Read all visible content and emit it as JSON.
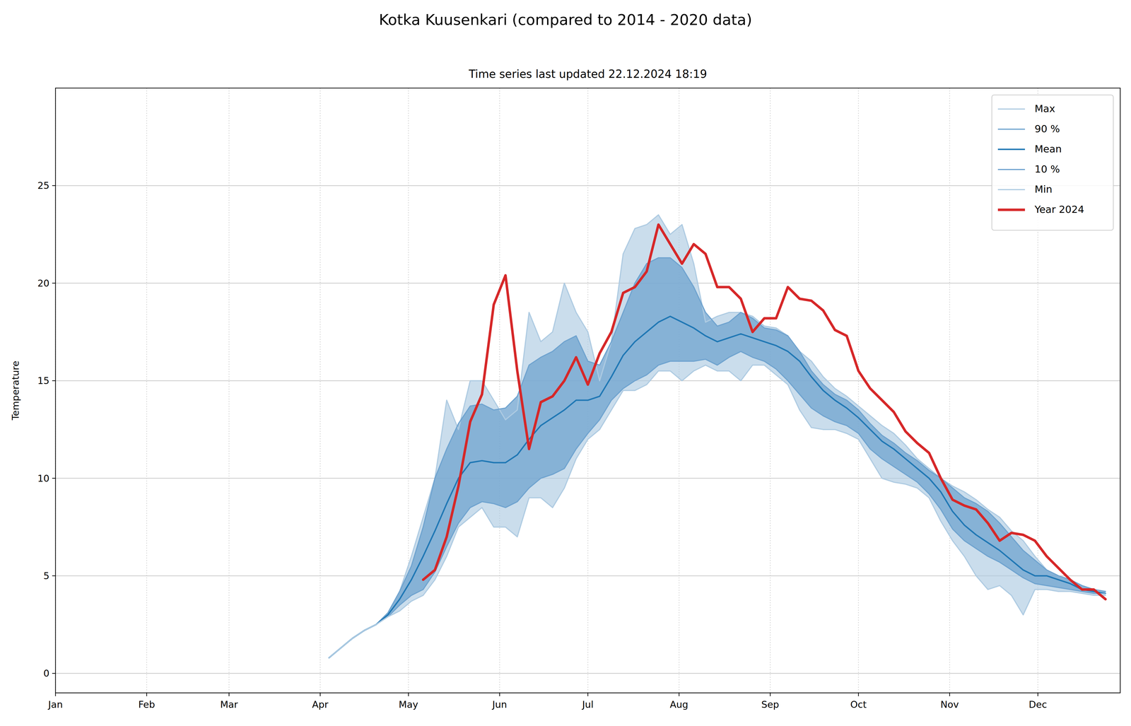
{
  "chart_data": {
    "type": "line",
    "title": "Kotka Kuusenkari (compared to 2014 - 2020 data)",
    "subtitle": "Time series last updated 22.12.2024 18:19",
    "ylabel": "Temperature",
    "x": [
      93,
      97,
      101,
      105,
      109,
      113,
      117,
      121,
      125,
      129,
      133,
      137,
      141,
      145,
      149,
      153,
      157,
      161,
      165,
      169,
      173,
      177,
      181,
      185,
      189,
      193,
      197,
      201,
      205,
      209,
      213,
      217,
      221,
      225,
      229,
      233,
      237,
      241,
      245,
      249,
      253,
      257,
      261,
      265,
      269,
      273,
      277,
      281,
      285,
      289,
      293,
      297,
      301,
      305,
      309,
      313,
      317,
      321,
      325,
      329,
      333,
      337,
      341,
      345,
      349,
      353,
      357
    ],
    "xlim": [
      0,
      362
    ],
    "xticks": [
      {
        "value": 0,
        "label": "Jan"
      },
      {
        "value": 31,
        "label": "Feb"
      },
      {
        "value": 59,
        "label": "Mar"
      },
      {
        "value": 90,
        "label": "Apr"
      },
      {
        "value": 120,
        "label": "May"
      },
      {
        "value": 151,
        "label": "Jun"
      },
      {
        "value": 181,
        "label": "Jul"
      },
      {
        "value": 212,
        "label": "Aug"
      },
      {
        "value": 243,
        "label": "Sep"
      },
      {
        "value": 273,
        "label": "Oct"
      },
      {
        "value": 304,
        "label": "Nov"
      },
      {
        "value": 334,
        "label": "Dec"
      }
    ],
    "ylim": [
      -1,
      30
    ],
    "yticks": [
      0,
      5,
      10,
      15,
      20,
      25
    ],
    "grid": true,
    "legend": "upper right",
    "series": [
      {
        "name": "Max",
        "color": "#aecbe2",
        "values": [
          0.8,
          1.3,
          1.8,
          2.2,
          2.5,
          3.1,
          4.2,
          6.0,
          8.0,
          10.0,
          14.0,
          12.5,
          15.0,
          15.0,
          14.0,
          13.0,
          13.5,
          18.5,
          17.0,
          17.5,
          20.0,
          18.5,
          17.5,
          15.0,
          17.0,
          21.5,
          22.8,
          23.0,
          23.5,
          22.5,
          23.0,
          21.0,
          18.0,
          18.3,
          18.5,
          18.5,
          18.3,
          17.8,
          17.7,
          17.3,
          16.5,
          16.0,
          15.2,
          14.6,
          14.2,
          13.7,
          13.2,
          12.7,
          12.3,
          11.7,
          11.0,
          10.5,
          10.0,
          9.6,
          9.3,
          8.9,
          8.4,
          8.0,
          7.3,
          6.8,
          6.0,
          5.3,
          5.0,
          4.8,
          4.5,
          4.3,
          4.1
        ]
      },
      {
        "name": "90 %",
        "color": "#6fa3cf",
        "values": [
          0.8,
          1.3,
          1.8,
          2.2,
          2.5,
          3.1,
          4.2,
          5.5,
          7.5,
          10.0,
          11.5,
          12.8,
          13.7,
          13.8,
          13.5,
          13.6,
          14.2,
          15.8,
          16.2,
          16.5,
          17.0,
          17.3,
          16.0,
          15.8,
          17.0,
          18.5,
          20.0,
          21.0,
          21.3,
          21.3,
          20.8,
          19.8,
          18.5,
          17.8,
          18.0,
          18.5,
          18.2,
          17.7,
          17.6,
          17.3,
          16.5,
          15.5,
          14.8,
          14.3,
          14.0,
          13.5,
          12.8,
          12.2,
          11.8,
          11.3,
          10.9,
          10.4,
          10.0,
          9.5,
          9.0,
          8.7,
          8.3,
          7.7,
          7.0,
          6.3,
          5.8,
          5.3,
          5.0,
          4.8,
          4.5,
          4.3,
          4.2
        ]
      },
      {
        "name": "Mean",
        "color": "#1f77b4",
        "values": [
          0.8,
          1.3,
          1.8,
          2.2,
          2.5,
          3.0,
          3.8,
          4.8,
          6.0,
          7.3,
          8.7,
          10.0,
          10.8,
          10.9,
          10.8,
          10.8,
          11.2,
          12.0,
          12.7,
          13.1,
          13.5,
          14.0,
          14.0,
          14.2,
          15.2,
          16.3,
          17.0,
          17.5,
          18.0,
          18.3,
          18.0,
          17.7,
          17.3,
          17.0,
          17.2,
          17.4,
          17.2,
          17.0,
          16.8,
          16.5,
          16.0,
          15.2,
          14.5,
          14.0,
          13.6,
          13.1,
          12.5,
          11.9,
          11.5,
          11.0,
          10.5,
          10.0,
          9.3,
          8.3,
          7.6,
          7.1,
          6.7,
          6.3,
          5.8,
          5.3,
          5.0,
          5.0,
          4.8,
          4.6,
          4.3,
          4.2,
          4.1
        ]
      },
      {
        "name": "10 %",
        "color": "#6fa3cf",
        "values": [
          0.8,
          1.3,
          1.8,
          2.2,
          2.5,
          2.9,
          3.5,
          4.0,
          4.3,
          5.2,
          6.5,
          7.7,
          8.5,
          8.8,
          8.7,
          8.5,
          8.8,
          9.5,
          10.0,
          10.2,
          10.5,
          11.5,
          12.3,
          13.0,
          14.0,
          14.6,
          15.0,
          15.3,
          15.8,
          16.0,
          16.0,
          16.0,
          16.1,
          15.8,
          16.2,
          16.5,
          16.2,
          16.0,
          15.6,
          15.0,
          14.3,
          13.6,
          13.2,
          12.9,
          12.7,
          12.3,
          11.5,
          11.0,
          10.6,
          10.2,
          9.8,
          9.2,
          8.4,
          7.4,
          6.8,
          6.4,
          6.0,
          5.7,
          5.3,
          4.9,
          4.6,
          4.5,
          4.4,
          4.3,
          4.2,
          4.1,
          4.1
        ]
      },
      {
        "name": "Min",
        "color": "#aecbe2",
        "values": [
          0.8,
          1.3,
          1.8,
          2.2,
          2.5,
          2.9,
          3.2,
          3.7,
          4.0,
          4.8,
          6.0,
          7.5,
          8.0,
          8.5,
          7.5,
          7.5,
          7.0,
          9.0,
          9.0,
          8.5,
          9.5,
          11.0,
          12.0,
          12.5,
          13.5,
          14.5,
          14.5,
          14.8,
          15.5,
          15.5,
          15.0,
          15.5,
          15.8,
          15.5,
          15.5,
          15.0,
          15.8,
          15.8,
          15.3,
          14.8,
          13.5,
          12.6,
          12.5,
          12.5,
          12.3,
          12.0,
          11.0,
          10.0,
          9.8,
          9.7,
          9.5,
          9.0,
          7.8,
          6.8,
          6.0,
          5.0,
          4.3,
          4.5,
          4.0,
          3.0,
          4.3,
          4.3,
          4.2,
          4.2,
          4.1,
          4.0,
          4.0
        ]
      },
      {
        "name": "Year 2024",
        "color": "#d62728",
        "values": [
          null,
          null,
          null,
          null,
          null,
          null,
          null,
          null,
          4.8,
          5.3,
          7.0,
          9.6,
          12.9,
          14.3,
          18.9,
          20.4,
          15.5,
          11.5,
          13.9,
          14.2,
          15.0,
          16.2,
          14.8,
          16.4,
          17.5,
          19.5,
          19.8,
          20.6,
          23.0,
          22.0,
          21.0,
          22.0,
          21.5,
          19.8,
          19.8,
          19.2,
          17.5,
          18.2,
          18.2,
          19.8,
          19.2,
          19.1,
          18.6,
          17.6,
          17.3,
          15.5,
          14.6,
          14.0,
          13.4,
          12.4,
          11.8,
          11.3,
          10.0,
          8.9,
          8.6,
          8.4,
          7.7,
          6.8,
          7.2,
          7.1,
          6.8,
          6.0,
          5.4,
          4.8,
          4.3,
          4.3,
          3.8
        ]
      }
    ]
  }
}
